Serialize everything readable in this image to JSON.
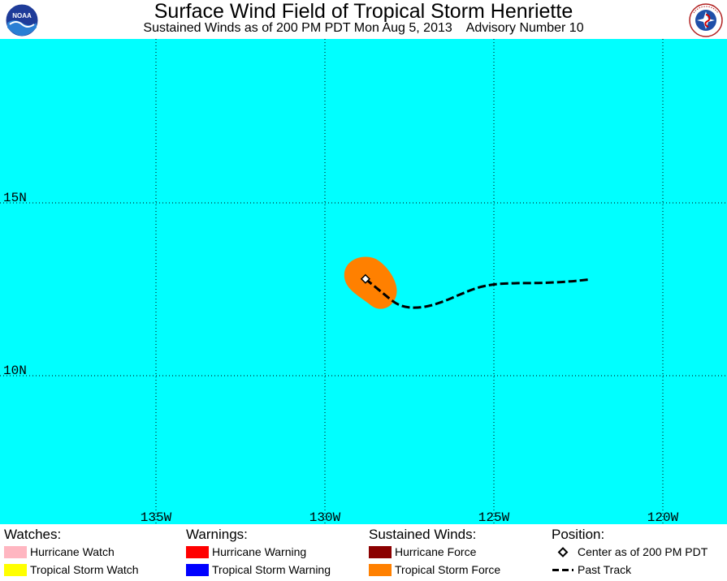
{
  "header": {
    "title": "Surface Wind Field of Tropical Storm Henriette",
    "subtitle": "Sustained Winds as of 200 PM PDT Mon Aug 5, 2013    Advisory Number 10",
    "logo_left": "NOAA",
    "logo_right": "NATIONAL WEATHER SERVICE"
  },
  "map": {
    "background": "#00ffff",
    "grid": true,
    "lat_labels": [
      "15N",
      "10N"
    ],
    "lon_labels": [
      "135W",
      "130W",
      "125W",
      "120W"
    ],
    "storm": {
      "center_lon": -128.8,
      "center_lat": 12.8,
      "wind_field_color": "#ff8000",
      "track_color": "#000000",
      "past_track": [
        [
          -128.8,
          12.8
        ],
        [
          -128.3,
          12.4
        ],
        [
          -127.8,
          12.0
        ],
        [
          -127.2,
          11.95
        ],
        [
          -126.6,
          12.1
        ],
        [
          -126.0,
          12.35
        ],
        [
          -125.5,
          12.55
        ],
        [
          -125.0,
          12.65
        ],
        [
          -124.4,
          12.68
        ],
        [
          -123.6,
          12.68
        ],
        [
          -122.8,
          12.72
        ],
        [
          -122.2,
          12.78
        ]
      ]
    }
  },
  "legend": {
    "watches": {
      "heading": "Watches:",
      "items": [
        {
          "label": "Hurricane Watch",
          "color": "#ffb6c1"
        },
        {
          "label": "Tropical Storm Watch",
          "color": "#ffff00"
        }
      ]
    },
    "warnings": {
      "heading": "Warnings:",
      "items": [
        {
          "label": "Hurricane Warning",
          "color": "#ff0000"
        },
        {
          "label": "Tropical Storm Warning",
          "color": "#0000ff"
        }
      ]
    },
    "winds": {
      "heading": "Sustained Winds:",
      "items": [
        {
          "label": "Hurricane Force",
          "color": "#8b0000"
        },
        {
          "label": "Tropical Storm Force",
          "color": "#ff8000"
        }
      ]
    },
    "position": {
      "heading": "Position:",
      "items": [
        {
          "label": "Center as of 200 PM PDT",
          "icon": "diamond-icon"
        },
        {
          "label": "Past Track",
          "icon": "dashed-line-icon"
        }
      ]
    }
  }
}
